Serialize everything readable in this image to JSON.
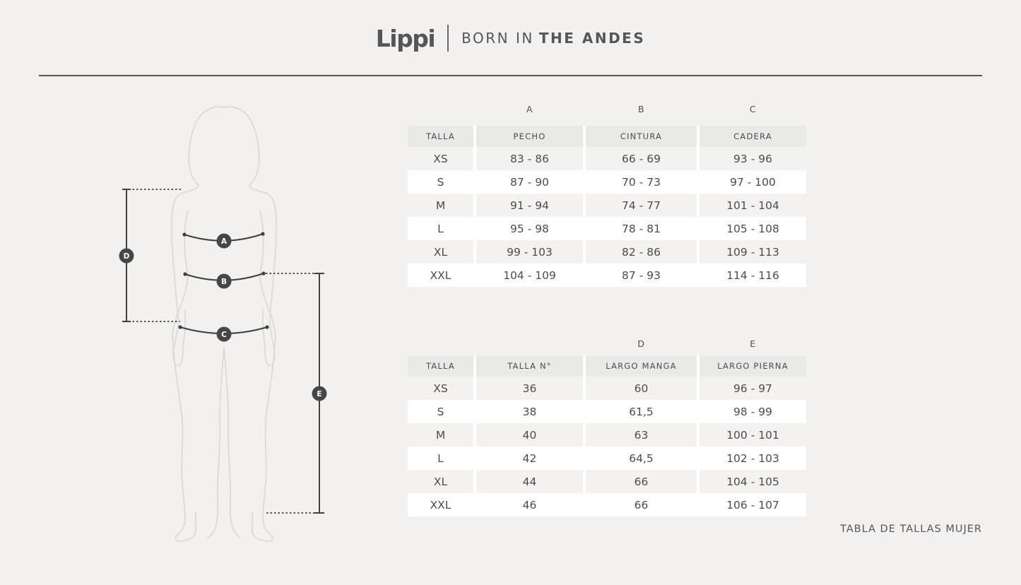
{
  "brand": {
    "logo_text": "Lippi",
    "tagline_regular": "BORN IN",
    "tagline_bold": "THE ANDES"
  },
  "page": {
    "caption": "TABLA DE TALLAS MUJER"
  },
  "colors": {
    "page_bg": "#f2f1ef",
    "brand_gray": "#54565a",
    "table_header_bg": "#e9e9e7",
    "table_row_alt_bg": "#f3f2f0",
    "table_row_bg": "#ffffff",
    "marker_dark": "#3f4041",
    "silhouette_line": "#d8d8d6"
  },
  "figure": {
    "markers": [
      "A",
      "B",
      "C",
      "D",
      "E"
    ]
  },
  "tables": [
    {
      "letters": [
        "A",
        "B",
        "C"
      ],
      "headers": [
        "TALLA",
        "PECHO",
        "CINTURA",
        "CADERA"
      ],
      "rows": [
        [
          "XS",
          "83 - 86",
          "66 - 69",
          "93 - 96"
        ],
        [
          "S",
          "87 - 90",
          "70 - 73",
          "97 - 100"
        ],
        [
          "M",
          "91 - 94",
          "74 - 77",
          "101 - 104"
        ],
        [
          "L",
          "95 - 98",
          "78 - 81",
          "105 - 108"
        ],
        [
          "XL",
          "99 - 103",
          "82 - 86",
          "109 - 113"
        ],
        [
          "XXL",
          "104 - 109",
          "87 - 93",
          "114 - 116"
        ]
      ]
    },
    {
      "letters": [
        "D",
        "E"
      ],
      "headers": [
        "TALLA",
        "TALLA N°",
        "LARGO MANGA",
        "LARGO PIERNA"
      ],
      "rows": [
        [
          "XS",
          "36",
          "60",
          "96 - 97"
        ],
        [
          "S",
          "38",
          "61,5",
          "98 - 99"
        ],
        [
          "M",
          "40",
          "63",
          "100 - 101"
        ],
        [
          "L",
          "42",
          "64,5",
          "102 - 103"
        ],
        [
          "XL",
          "44",
          "66",
          "104 - 105"
        ],
        [
          "XXL",
          "46",
          "66",
          "106 - 107"
        ]
      ]
    }
  ]
}
